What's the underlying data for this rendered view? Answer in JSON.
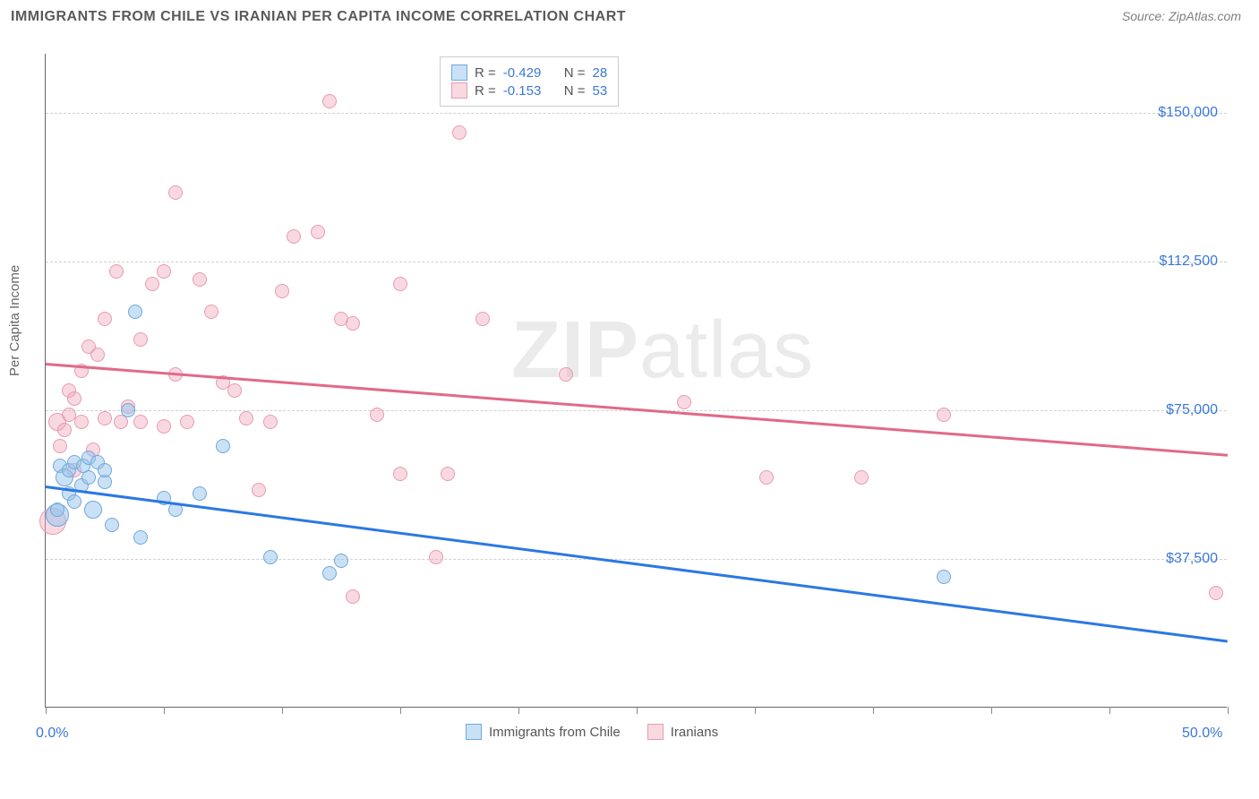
{
  "header": {
    "title": "IMMIGRANTS FROM CHILE VS IRANIAN PER CAPITA INCOME CORRELATION CHART",
    "source": "Source: ZipAtlas.com"
  },
  "chart": {
    "type": "scatter",
    "ylabel": "Per Capita Income",
    "xlim": [
      0,
      50
    ],
    "ylim": [
      0,
      165000
    ],
    "xtick_positions": [
      0,
      5,
      10,
      15,
      20,
      25,
      30,
      35,
      40,
      45,
      50
    ],
    "xaxis_labels": [
      {
        "x": 0,
        "text": "0.0%"
      },
      {
        "x": 50,
        "text": "50.0%"
      }
    ],
    "ytick_values": [
      37500,
      75000,
      112500,
      150000
    ],
    "ytick_labels": [
      "$37,500",
      "$75,000",
      "$112,500",
      "$150,000"
    ],
    "background_color": "#ffffff",
    "grid_color": "#d0d0d0",
    "axis_color": "#666666",
    "tick_label_color": "#3a78d8",
    "series": [
      {
        "name": "Immigrants from Chile",
        "fill_color": "rgba(150,195,235,0.5)",
        "stroke_color": "#6fa8dc",
        "trend_color": "#2b78e4",
        "trend": {
          "x1": 0,
          "y1": 56000,
          "x2": 50,
          "y2": 17000
        },
        "R": "-0.429",
        "N": "28",
        "points": [
          {
            "x": 0.5,
            "y": 48500,
            "r": 13
          },
          {
            "x": 0.5,
            "y": 50000,
            "r": 8
          },
          {
            "x": 0.6,
            "y": 61000,
            "r": 8
          },
          {
            "x": 0.8,
            "y": 58000,
            "r": 10
          },
          {
            "x": 1.0,
            "y": 60000,
            "r": 8
          },
          {
            "x": 1.0,
            "y": 54000,
            "r": 8
          },
          {
            "x": 1.2,
            "y": 52000,
            "r": 8
          },
          {
            "x": 1.2,
            "y": 62000,
            "r": 8
          },
          {
            "x": 1.5,
            "y": 56000,
            "r": 8
          },
          {
            "x": 1.6,
            "y": 61000,
            "r": 8
          },
          {
            "x": 1.8,
            "y": 58000,
            "r": 8
          },
          {
            "x": 1.8,
            "y": 63000,
            "r": 8
          },
          {
            "x": 2.0,
            "y": 50000,
            "r": 10
          },
          {
            "x": 2.2,
            "y": 62000,
            "r": 8
          },
          {
            "x": 2.5,
            "y": 57000,
            "r": 8
          },
          {
            "x": 2.5,
            "y": 60000,
            "r": 8
          },
          {
            "x": 2.8,
            "y": 46000,
            "r": 8
          },
          {
            "x": 3.5,
            "y": 75000,
            "r": 8
          },
          {
            "x": 3.8,
            "y": 100000,
            "r": 8
          },
          {
            "x": 4.0,
            "y": 43000,
            "r": 8
          },
          {
            "x": 5.0,
            "y": 53000,
            "r": 8
          },
          {
            "x": 5.5,
            "y": 50000,
            "r": 8
          },
          {
            "x": 6.5,
            "y": 54000,
            "r": 8
          },
          {
            "x": 7.5,
            "y": 66000,
            "r": 8
          },
          {
            "x": 9.5,
            "y": 38000,
            "r": 8
          },
          {
            "x": 12.0,
            "y": 34000,
            "r": 8
          },
          {
            "x": 12.5,
            "y": 37000,
            "r": 8
          },
          {
            "x": 38.0,
            "y": 33000,
            "r": 8
          }
        ]
      },
      {
        "name": "Iranians",
        "fill_color": "rgba(240,170,190,0.45)",
        "stroke_color": "#e89bb0",
        "trend_color": "#e06a8a",
        "trend": {
          "x1": 0,
          "y1": 87000,
          "x2": 50,
          "y2": 64000
        },
        "R": "-0.153",
        "N": "53",
        "points": [
          {
            "x": 0.3,
            "y": 47000,
            "r": 15
          },
          {
            "x": 0.5,
            "y": 72000,
            "r": 10
          },
          {
            "x": 0.6,
            "y": 66000,
            "r": 8
          },
          {
            "x": 0.8,
            "y": 70000,
            "r": 8
          },
          {
            "x": 1.0,
            "y": 74000,
            "r": 8
          },
          {
            "x": 1.0,
            "y": 80000,
            "r": 8
          },
          {
            "x": 1.2,
            "y": 60000,
            "r": 8
          },
          {
            "x": 1.2,
            "y": 78000,
            "r": 8
          },
          {
            "x": 1.5,
            "y": 72000,
            "r": 8
          },
          {
            "x": 1.5,
            "y": 85000,
            "r": 8
          },
          {
            "x": 1.8,
            "y": 91000,
            "r": 8
          },
          {
            "x": 2.0,
            "y": 65000,
            "r": 8
          },
          {
            "x": 2.2,
            "y": 89000,
            "r": 8
          },
          {
            "x": 2.5,
            "y": 73000,
            "r": 8
          },
          {
            "x": 2.5,
            "y": 98000,
            "r": 8
          },
          {
            "x": 3.0,
            "y": 110000,
            "r": 8
          },
          {
            "x": 3.2,
            "y": 72000,
            "r": 8
          },
          {
            "x": 3.5,
            "y": 76000,
            "r": 8
          },
          {
            "x": 4.0,
            "y": 72000,
            "r": 8
          },
          {
            "x": 4.0,
            "y": 93000,
            "r": 8
          },
          {
            "x": 4.5,
            "y": 107000,
            "r": 8
          },
          {
            "x": 5.0,
            "y": 71000,
            "r": 8
          },
          {
            "x": 5.0,
            "y": 110000,
            "r": 8
          },
          {
            "x": 5.5,
            "y": 84000,
            "r": 8
          },
          {
            "x": 5.5,
            "y": 130000,
            "r": 8
          },
          {
            "x": 6.0,
            "y": 72000,
            "r": 8
          },
          {
            "x": 6.5,
            "y": 108000,
            "r": 8
          },
          {
            "x": 7.0,
            "y": 100000,
            "r": 8
          },
          {
            "x": 7.5,
            "y": 82000,
            "r": 8
          },
          {
            "x": 8.0,
            "y": 80000,
            "r": 8
          },
          {
            "x": 8.5,
            "y": 73000,
            "r": 8
          },
          {
            "x": 9.0,
            "y": 55000,
            "r": 8
          },
          {
            "x": 9.5,
            "y": 72000,
            "r": 8
          },
          {
            "x": 10.0,
            "y": 105000,
            "r": 8
          },
          {
            "x": 10.5,
            "y": 119000,
            "r": 8
          },
          {
            "x": 11.5,
            "y": 120000,
            "r": 8
          },
          {
            "x": 12.0,
            "y": 153000,
            "r": 8
          },
          {
            "x": 12.5,
            "y": 98000,
            "r": 8
          },
          {
            "x": 13.0,
            "y": 28000,
            "r": 8
          },
          {
            "x": 13.0,
            "y": 97000,
            "r": 8
          },
          {
            "x": 14.0,
            "y": 74000,
            "r": 8
          },
          {
            "x": 15.0,
            "y": 107000,
            "r": 8
          },
          {
            "x": 15.0,
            "y": 59000,
            "r": 8
          },
          {
            "x": 16.5,
            "y": 38000,
            "r": 8
          },
          {
            "x": 17.0,
            "y": 59000,
            "r": 8
          },
          {
            "x": 17.5,
            "y": 145000,
            "r": 8
          },
          {
            "x": 18.5,
            "y": 98000,
            "r": 8
          },
          {
            "x": 22.0,
            "y": 84000,
            "r": 8
          },
          {
            "x": 27.0,
            "y": 77000,
            "r": 8
          },
          {
            "x": 30.5,
            "y": 58000,
            "r": 8
          },
          {
            "x": 34.5,
            "y": 58000,
            "r": 8
          },
          {
            "x": 38.0,
            "y": 74000,
            "r": 8
          },
          {
            "x": 49.5,
            "y": 29000,
            "r": 8
          }
        ]
      }
    ],
    "watermark": {
      "zip": "ZIP",
      "atlas": "atlas"
    },
    "legend_top": {
      "r_label": "R =",
      "n_label": "N ="
    },
    "bottom_legend_labels": [
      "Immigrants from Chile",
      "Iranians"
    ]
  }
}
